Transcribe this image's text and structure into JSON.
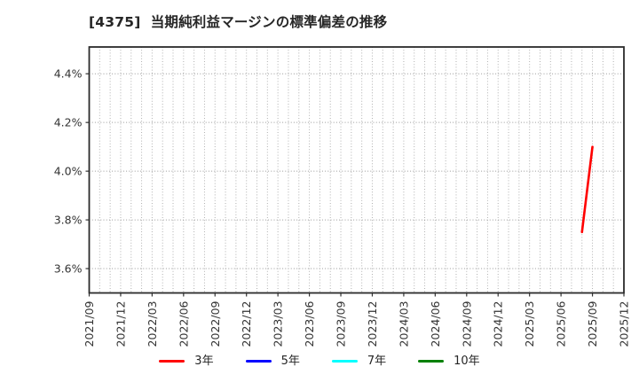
{
  "chart_data": {
    "type": "line",
    "title": "[4375]  当期純利益マージンの標準偏差の推移",
    "x_axis": {
      "unit": "month",
      "start": "2021/09",
      "end": "2025/12",
      "tick_labels": [
        "2021/09",
        "2021/12",
        "2022/03",
        "2022/06",
        "2022/09",
        "2022/12",
        "2023/03",
        "2023/06",
        "2023/09",
        "2023/12",
        "2024/03",
        "2024/06",
        "2024/09",
        "2024/12",
        "2025/03",
        "2025/06",
        "2025/09",
        "2025/12"
      ],
      "minor_gridlines": "monthly"
    },
    "y_axis": {
      "ylim": [
        3.5,
        4.51
      ],
      "ticks": [
        3.6,
        3.8,
        4.0,
        4.2,
        4.4
      ],
      "tick_labels": [
        "3.6%",
        "3.8%",
        "4.0%",
        "4.2%",
        "4.4%"
      ],
      "unit": "%"
    },
    "grid": {
      "on": true,
      "style": "dotted",
      "color": "#b0b0b0"
    },
    "series": [
      {
        "name": "3年",
        "color": "#ff0000",
        "points": [
          {
            "x": "2025/08",
            "y": 3.75
          },
          {
            "x": "2025/09",
            "y": 4.1
          }
        ]
      },
      {
        "name": "5年",
        "color": "#0000ff",
        "points": []
      },
      {
        "name": "7年",
        "color": "#00ffff",
        "points": []
      },
      {
        "name": "10年",
        "color": "#008000",
        "points": []
      }
    ],
    "legend": {
      "position": "bottom-center",
      "items": [
        "3年",
        "5年",
        "7年",
        "10年"
      ]
    },
    "axis_color": "#333333",
    "tick_label_color": "#333333"
  }
}
